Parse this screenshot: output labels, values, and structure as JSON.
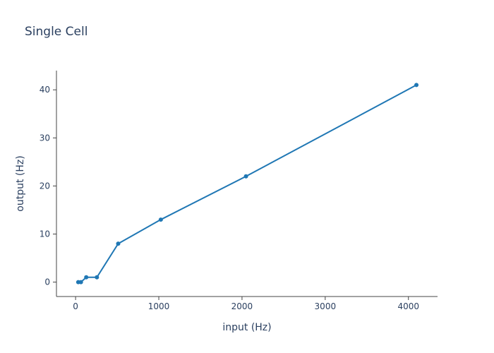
{
  "chart_data": {
    "type": "line",
    "title": "Single Cell",
    "xlabel": "input (Hz)",
    "ylabel": "output (Hz)",
    "xlim": [
      -230,
      4350
    ],
    "ylim": [
      -3,
      44
    ],
    "xticks": [
      0,
      1000,
      2000,
      3000,
      4000
    ],
    "xtick_labels": [
      "0",
      "1000",
      "2000",
      "3000",
      "4000"
    ],
    "yticks": [
      0,
      10,
      20,
      30,
      40
    ],
    "ytick_labels": [
      "0",
      "10",
      "20",
      "30",
      "40"
    ],
    "grid": false,
    "series": [
      {
        "color": "#1f77b4",
        "x": [
          32,
          64,
          128,
          256,
          512,
          1024,
          2048,
          4096
        ],
        "y": [
          0,
          0,
          1,
          1,
          8,
          13,
          22,
          41
        ]
      }
    ]
  }
}
